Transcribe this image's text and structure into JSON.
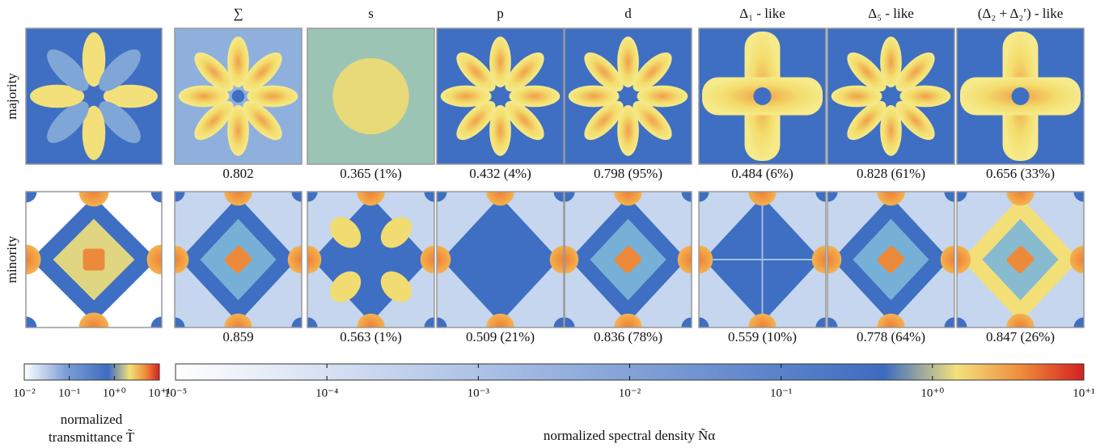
{
  "column_headers": [
    "∑",
    "s",
    "p",
    "d",
    "Δ₁ - like",
    "Δ₅ - like",
    "(Δ₂ + Δ₂′) - like"
  ],
  "rows": [
    {
      "label": "majority",
      "values": [
        "0.802",
        "0.365 (1%)",
        "0.432 (4%)",
        "0.798 (95%)",
        "0.484 (6%)",
        "0.828 (61%)",
        "0.656 (33%)"
      ]
    },
    {
      "label": "minority",
      "values": [
        "0.859",
        "0.563 (1%)",
        "0.509 (21%)",
        "0.836 (78%)",
        "0.559 (10%)",
        "0.778 (64%)",
        "0.847 (26%)"
      ]
    }
  ],
  "colorbars": {
    "transmittance": {
      "ticks": [
        "10⁻²",
        "10⁻¹",
        "10⁺⁰",
        "10⁺¹"
      ],
      "title": [
        "normalized",
        "transmittance T̃"
      ]
    },
    "spectral_density": {
      "ticks": [
        "10⁻⁵",
        "10⁻⁴",
        "10⁻³",
        "10⁻²",
        "10⁻¹",
        "10⁺⁰",
        "10⁺¹"
      ],
      "title": "normalized spectral density Ñα"
    }
  }
}
